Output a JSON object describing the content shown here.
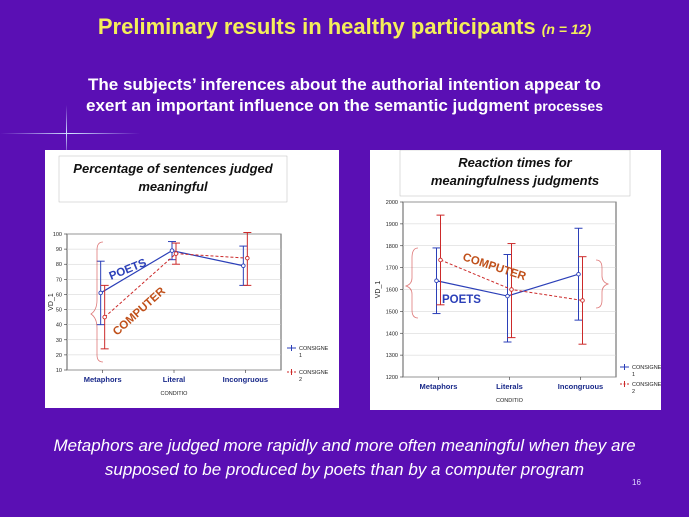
{
  "slide": {
    "title": "Preliminary results in healthy participants",
    "n_label": "(n = 12)",
    "subtitle_line1": "The subjects’ inferences about the authorial intention appear to",
    "subtitle_line2": "exert an important  influence on the semantic judgment",
    "subtitle_tail": "processes",
    "footer_line1": "Metaphors are judged more rapidly and more often meaningful when they are",
    "footer_line2": "supposed to be produced by poets than by a computer program",
    "page_number": "16"
  },
  "colors": {
    "background": "#5a0fb4",
    "title": "#f4ee5a",
    "consigne1": "#2b3fb8",
    "consigne2": "#cc2a2a",
    "poets_label": "#2b3fb8",
    "computer_label": "#c0501a"
  },
  "chart_data": [
    {
      "type": "line",
      "title_line1": "Percentage of sentences judged",
      "title_line2": "meaningful",
      "ylabel": "VD_1",
      "xlabel": "CONDITIO",
      "categories": [
        "Metaphors",
        "Literal",
        "Incongruous"
      ],
      "ylim": [
        10,
        100
      ],
      "yticks": [
        10,
        20,
        30,
        40,
        50,
        60,
        70,
        80,
        90,
        100
      ],
      "series": [
        {
          "name": "CONSIGNE 1",
          "values": [
            61,
            89,
            79
          ],
          "err_low": [
            40,
            83,
            66
          ],
          "err_high": [
            82,
            95,
            92
          ]
        },
        {
          "name": "CONSIGNE 2",
          "values": [
            45,
            87,
            84
          ],
          "err_low": [
            24,
            80,
            66
          ],
          "err_high": [
            66,
            94,
            101
          ]
        }
      ],
      "legend": [
        "CONSIGNE 1",
        "CONSIGNE 2"
      ],
      "legend_position": "bottom-right",
      "annotations": [
        "POETS",
        "COMPUTER"
      ]
    },
    {
      "type": "line",
      "title_line1": "Reaction times for",
      "title_line2": "meaningfulness judgments",
      "ylabel": "VD_1",
      "xlabel": "CONDITIO",
      "categories": [
        "Metaphors",
        "Literals",
        "Incongruous"
      ],
      "ylim": [
        1200,
        2000
      ],
      "yticks": [
        1200,
        1300,
        1400,
        1500,
        1600,
        1700,
        1800,
        1900,
        2000
      ],
      "series": [
        {
          "name": "CONSIGNE 1",
          "values": [
            1640,
            1570,
            1670
          ],
          "err_low": [
            1490,
            1360,
            1460
          ],
          "err_high": [
            1790,
            1760,
            1880
          ]
        },
        {
          "name": "CONSIGNE 2",
          "values": [
            1735,
            1600,
            1550
          ],
          "err_low": [
            1530,
            1380,
            1350
          ],
          "err_high": [
            1940,
            1810,
            1750
          ]
        }
      ],
      "legend": [
        "CONSIGNE 1",
        "CONSIGNE 2"
      ],
      "legend_position": "bottom-right",
      "annotations": [
        "COMPUTER",
        "POETS"
      ]
    }
  ]
}
